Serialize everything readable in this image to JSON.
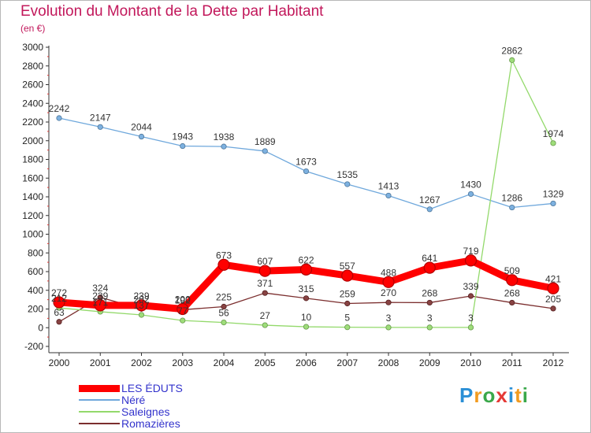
{
  "header": {
    "title": "Evolution du Montant de la Dette par Habitant",
    "subtitle": "(en €)"
  },
  "logo": {
    "text": "Proxiti",
    "letter_colors": [
      "#2a8fd6",
      "#f29b1f",
      "#3aa84a",
      "#e53935",
      "#2a8fd6",
      "#f29b1f",
      "#3aa84a"
    ]
  },
  "chart_data": {
    "type": "line",
    "title": "Evolution du Montant de la Dette par Habitant",
    "subtitle": "(en €)",
    "xlabel": "",
    "ylabel": "",
    "x": [
      "2000",
      "2001",
      "2002",
      "2003",
      "2004",
      "2005",
      "2006",
      "2007",
      "2008",
      "2009",
      "2010",
      "2011",
      "2012"
    ],
    "ylim": [
      -200,
      3000
    ],
    "yticks": [
      -200,
      0,
      200,
      400,
      600,
      800,
      1000,
      1200,
      1400,
      1600,
      1800,
      2000,
      2200,
      2400,
      2600,
      2800,
      3000
    ],
    "grid": false,
    "legend_position": "bottom-left",
    "series": [
      {
        "name": "LES ÉDUTS",
        "color": "#ff0000",
        "values": [
          272,
          239,
          239,
          200,
          673,
          607,
          622,
          557,
          488,
          641,
          719,
          509,
          421
        ]
      },
      {
        "name": "Néré",
        "color": "#6fa8dc",
        "values": [
          2242,
          2147,
          2044,
          1943,
          1938,
          1889,
          1673,
          1535,
          1413,
          1267,
          1430,
          1286,
          1329
        ]
      },
      {
        "name": "Saleignes",
        "color": "#93d96b",
        "values": [
          212,
          171,
          137,
          77,
          56,
          27,
          10,
          5,
          3,
          3,
          3,
          2862,
          1974
        ]
      },
      {
        "name": "Romazières",
        "color": "#7b2e2e",
        "values": [
          63,
          324,
          202,
          192,
          225,
          371,
          315,
          259,
          270,
          268,
          339,
          268,
          205
        ]
      }
    ]
  }
}
